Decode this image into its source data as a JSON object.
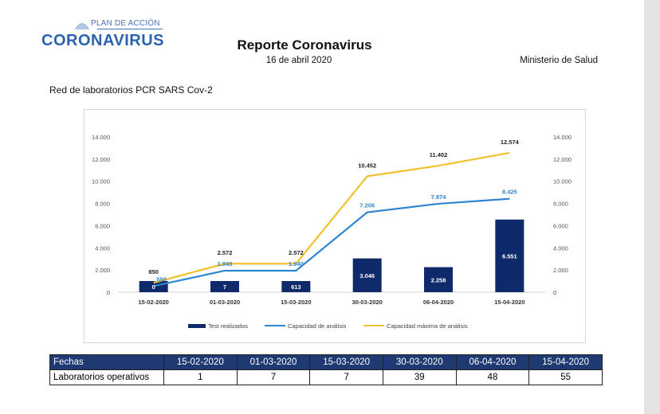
{
  "logo": {
    "subtitle": "PLAN DE ACCIÓN",
    "name": "CORONAVIRUS"
  },
  "header": {
    "title": "Reporte Coronavirus",
    "date": "16 de abril 2020",
    "ministry": "Ministerio de Salud"
  },
  "section_title": "Red de laboratorios PCR SARS Cov-2",
  "chart_data": {
    "type": "bar",
    "categories": [
      "15-02-2020",
      "01-03-2020",
      "15-03-2020",
      "30-03-2020",
      "06-04-2020",
      "15-04-2020"
    ],
    "ylim": [
      0,
      14000
    ],
    "yticks": [
      0,
      2000,
      4000,
      6000,
      8000,
      10000,
      12000,
      14000
    ],
    "ytick_labels": [
      "0",
      "2.000",
      "4.000",
      "6.000",
      "8.000",
      "10.000",
      "12.000",
      "14.000"
    ],
    "secondary_axis": true,
    "grid": false,
    "legend_position": "bottom",
    "series": [
      {
        "name": "Test realizados",
        "type": "bar",
        "color": "#0e2a6b",
        "values": [
          0,
          7,
          613,
          3046,
          2258,
          6551
        ],
        "labels": [
          "0",
          "7",
          "613",
          "3.046",
          "2.258",
          "6.551"
        ]
      },
      {
        "name": "Capacidad de análisis",
        "type": "line",
        "color": "#2e86d0",
        "values": [
          550,
          1940,
          1940,
          7206,
          7974,
          8425
        ],
        "labels": [
          "550",
          "1.940",
          "1.940",
          "7.206",
          "7.974",
          "8.425"
        ]
      },
      {
        "name": "Capacidad máxima de análisis",
        "type": "line",
        "color": "#f2c12e",
        "values": [
          850,
          2572,
          2572,
          10452,
          11402,
          12574
        ],
        "labels": [
          "850",
          "2.572",
          "2.572",
          "10.452",
          "11.402",
          "12.574"
        ]
      }
    ]
  },
  "table": {
    "header_label": "Fechas",
    "dates": [
      "15-02-2020",
      "01-03-2020",
      "15-03-2020",
      "30-03-2020",
      "06-04-2020",
      "15-04-2020"
    ],
    "row_label": "Laboratorios operativos",
    "values": [
      "1",
      "7",
      "7",
      "39",
      "48",
      "55"
    ]
  },
  "colors": {
    "brand_blue": "#2a63b3",
    "table_header": "#1f3a73"
  }
}
